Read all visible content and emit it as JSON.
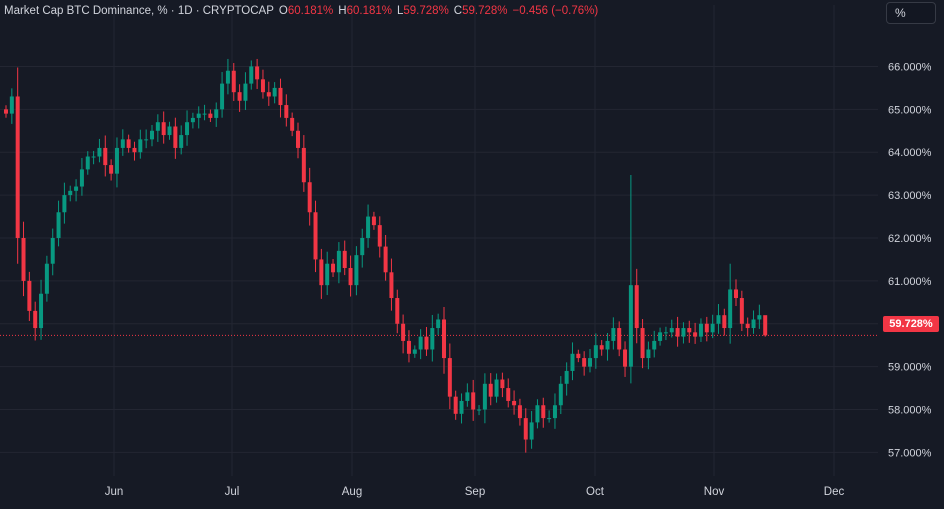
{
  "legend": {
    "title": "Market Cap BTC Dominance, % · 1D · CRYPTOCAP",
    "o_label": "O",
    "o_value": "60.181%",
    "h_label": "H",
    "h_value": "60.181%",
    "l_label": "L",
    "l_value": "59.728%",
    "c_label": "C",
    "c_value": "59.728%",
    "change": "−0.456 (−0.76%)"
  },
  "unit_button": "%",
  "last_price_tag": "59.728%",
  "colors": {
    "background": "#161a25",
    "up": "#089981",
    "down": "#f23645",
    "grid": "#232632",
    "text": "#d1d4dc"
  },
  "chart_data": {
    "type": "candlestick",
    "title": "Market Cap BTC Dominance, % · 1D · CRYPTOCAP",
    "ylim": [
      56.45,
      66.85
    ],
    "y_ticks": [
      "66.000%",
      "65.000%",
      "64.000%",
      "63.000%",
      "62.000%",
      "61.000%",
      "60.000%",
      "59.000%",
      "58.000%",
      "57.000%"
    ],
    "y_tick_values": [
      66,
      65,
      64,
      63,
      62,
      61,
      60,
      59,
      58,
      57
    ],
    "x_ticks": [
      "Jun",
      "Jul",
      "Aug",
      "Sep",
      "Oct",
      "Nov",
      "Dec"
    ],
    "last_price": 59.728,
    "grid": true,
    "axis_side": "right",
    "close": [
      64.9,
      65.3,
      62.0,
      61.0,
      60.3,
      59.9,
      60.7,
      61.4,
      62.0,
      62.6,
      63.0,
      63.1,
      63.2,
      63.6,
      63.9,
      63.9,
      64.1,
      63.7,
      63.5,
      64.1,
      64.3,
      64.1,
      64.0,
      64.3,
      64.3,
      64.5,
      64.7,
      64.4,
      64.6,
      64.1,
      64.4,
      64.7,
      64.8,
      64.9,
      64.9,
      64.8,
      65.0,
      65.6,
      65.9,
      65.4,
      65.2,
      65.6,
      66.0,
      65.7,
      65.4,
      65.3,
      65.5,
      65.1,
      64.8,
      64.5,
      64.1,
      63.3,
      62.6,
      61.5,
      60.9,
      61.4,
      61.2,
      61.7,
      61.3,
      60.9,
      61.6,
      62.0,
      62.5,
      62.3,
      61.8,
      61.2,
      60.6,
      60.0,
      59.6,
      59.3,
      59.4,
      59.7,
      59.4,
      59.9,
      60.1,
      59.2,
      58.3,
      57.9,
      58.2,
      58.4,
      58.0,
      58.0,
      58.6,
      58.3,
      58.7,
      58.5,
      58.2,
      58.1,
      57.8,
      57.3,
      57.7,
      58.1,
      57.8,
      57.8,
      58.1,
      58.6,
      58.9,
      59.3,
      59.2,
      59.0,
      59.2,
      59.5,
      59.4,
      59.6,
      59.9,
      59.4,
      59.0,
      60.9,
      59.9,
      59.2,
      59.4,
      59.6,
      59.8,
      59.8,
      59.9,
      59.7,
      59.9,
      59.8,
      59.7,
      60.0,
      59.8,
      60.0,
      60.2,
      59.9,
      60.8,
      60.6,
      60.0,
      59.9,
      60.1,
      60.2,
      59.728
    ],
    "open_first": 65.0,
    "highs_first_last": [
      65.4,
      60.181
    ],
    "wick_spikes": [
      {
        "index": 107,
        "high": 63.47
      },
      {
        "index": 124,
        "high": 61.4
      }
    ]
  }
}
